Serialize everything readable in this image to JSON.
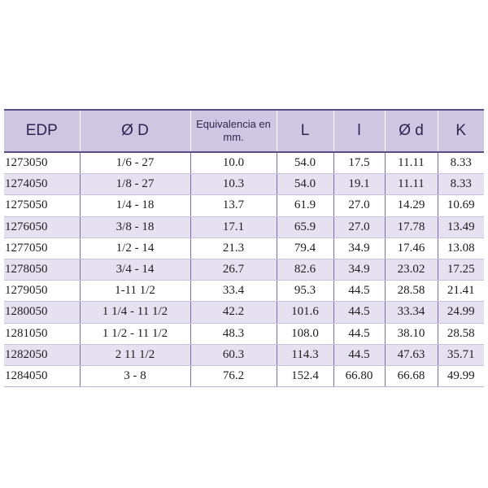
{
  "table": {
    "headers": [
      "EDP",
      "Ø D",
      "Equivalencia en mm.",
      "L",
      "l",
      "Ø d",
      "K"
    ],
    "rows": [
      [
        "1273050",
        "1/6 - 27",
        "10.0",
        "54.0",
        "17.5",
        "11.11",
        "8.33"
      ],
      [
        "1274050",
        "1/8 - 27",
        "10.3",
        "54.0",
        "19.1",
        "11.11",
        "8.33"
      ],
      [
        "1275050",
        "1/4 - 18",
        "13.7",
        "61.9",
        "27.0",
        "14.29",
        "10.69"
      ],
      [
        "1276050",
        "3/8 - 18",
        "17.1",
        "65.9",
        "27.0",
        "17.78",
        "13.49"
      ],
      [
        "1277050",
        "1/2 - 14",
        "21.3",
        "79.4",
        "34.9",
        "17.46",
        "13.08"
      ],
      [
        "1278050",
        "3/4 - 14",
        "26.7",
        "82.6",
        "34.9",
        "23.02",
        "17.25"
      ],
      [
        "1279050",
        "1-11 1/2",
        "33.4",
        "95.3",
        "44.5",
        "28.58",
        "21.41"
      ],
      [
        "1280050",
        "1 1/4 - 11 1/2",
        "42.2",
        "101.6",
        "44.5",
        "33.34",
        "24.99"
      ],
      [
        "1281050",
        "1 1/2 - 11 1/2",
        "48.3",
        "108.0",
        "44.5",
        "38.10",
        "28.58"
      ],
      [
        "1282050",
        "2 11 1/2",
        "60.3",
        "114.3",
        "44.5",
        "47.63",
        "35.71"
      ],
      [
        "1284050",
        "3 - 8",
        "76.2",
        "152.4",
        "66.80",
        "66.68",
        "49.99"
      ]
    ]
  },
  "colors": {
    "header_bg": "#cfc6e2",
    "header_text": "#2f2452",
    "stripe_bg": "#e6e1f1",
    "rule": "#5a4d86"
  }
}
